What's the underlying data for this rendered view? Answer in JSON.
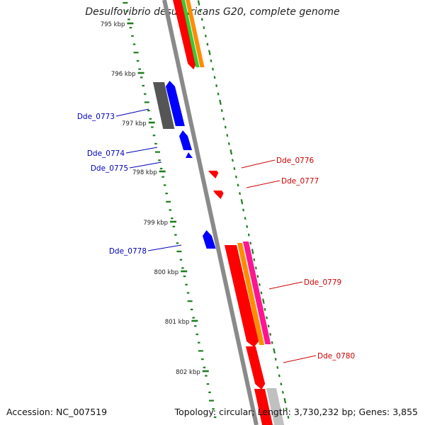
{
  "title": "Desulfovibrio desulfuricans G20, complete genome",
  "footer": {
    "accession": "Accession: NC_007519",
    "topology": "Topology: circular; Length: 3,730,232 bp; Genes: 3,855"
  },
  "colors": {
    "backbone": "#8a8a8a",
    "tick": "#1e7d1e",
    "forward_label": "#cc0000",
    "reverse_label": "#0000bb",
    "red": "#ff0000",
    "blue": "#0000ff",
    "orange": "#ff8c00",
    "green": "#33cc33",
    "magenta": "#ff1493",
    "dark_gray": "#555555",
    "light_gray": "#c0c0c0"
  },
  "kbp_ticks": [
    "795 kbp",
    "796 kbp",
    "797 kbp",
    "798 kbp",
    "799 kbp",
    "800 kbp",
    "801 kbp",
    "802 kbp"
  ],
  "gene_labels": {
    "reverse": [
      "Dde_0773",
      "Dde_0774",
      "Dde_0775",
      "Dde_0778"
    ],
    "forward": [
      "Dde_0776",
      "Dde_0777",
      "Dde_0779",
      "Dde_0780"
    ]
  }
}
